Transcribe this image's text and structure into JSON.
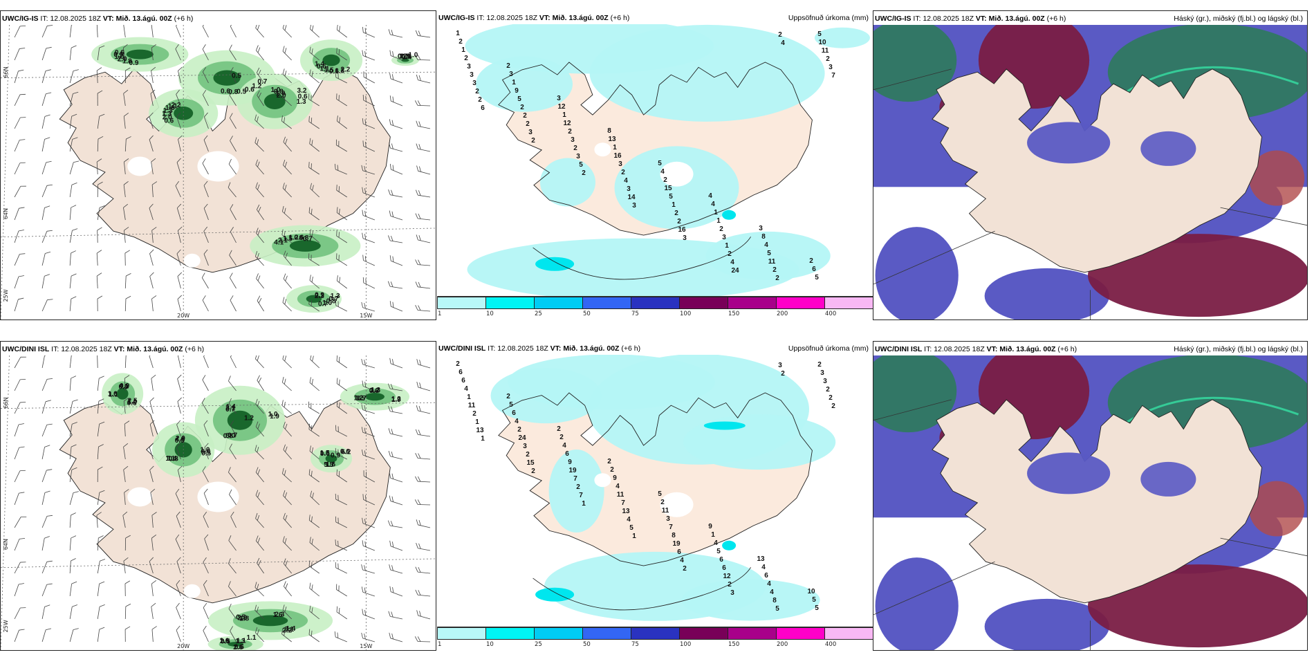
{
  "rows": [
    {
      "model": "UWC/IG-IS",
      "panels": [
        {
          "id": "wind-precip",
          "model": "UWC/IG-IS",
          "it_label": "IT:",
          "it": "12.08.2025 18Z",
          "vt_label": "VT:",
          "vt": "Mið. 13.ágú. 00Z",
          "lead": "(+6 h)",
          "right_title": ""
        },
        {
          "id": "accum-precip",
          "model": "UWC/IG-IS",
          "it_label": "IT:",
          "it": "12.08.2025 18Z",
          "vt_label": "VT:",
          "vt": "Mið. 13.ágú. 00Z",
          "lead": "(+6 h)",
          "right_title": "Uppsöfnuð úrkoma (mm)"
        },
        {
          "id": "clouds",
          "model": "UWC/IG-IS",
          "it_label": "IT:",
          "it": "12.08.2025 18Z",
          "vt_label": "VT:",
          "vt": "Mið. 13.ágú. 00Z",
          "lead": "(+6 h)",
          "right_title": "Háský (gr.), miðský (fj.bl.) og lágský (bl.)"
        }
      ]
    },
    {
      "model": "UWC/DINI ISL",
      "panels": [
        {
          "id": "wind-precip",
          "model": "UWC/DINI ISL",
          "it_label": "IT:",
          "it": "12.08.2025 18Z",
          "vt_label": "VT:",
          "vt": "Mið. 13.ágú. 00Z",
          "lead": "(+6 h)",
          "right_title": ""
        },
        {
          "id": "accum-precip",
          "model": "UWC/DINI ISL",
          "it_label": "IT:",
          "it": "12.08.2025 18Z",
          "vt_label": "VT:",
          "vt": "Mið. 13.ágú. 00Z",
          "lead": "(+6 h)",
          "right_title": "Uppsöfnuð úrkoma (mm)"
        },
        {
          "id": "clouds",
          "model": "UWC/DINI ISL",
          "it_label": "IT:",
          "it": "12.08.2025 18Z",
          "vt_label": "VT:",
          "vt": "Mið. 13.ágú. 00Z",
          "lead": "(+6 h)",
          "right_title": "Háský (gr.), miðský (fj.bl.) og lágský (bl.)"
        }
      ]
    }
  ],
  "axis_labels": {
    "lat_66": "66N",
    "lat_64": "64N",
    "lon_25": "25W",
    "lon_20": "20W",
    "lon_15": "15W"
  },
  "colorbar": {
    "ticks": [
      "1",
      "10",
      "25",
      "50",
      "75",
      "100",
      "150",
      "200",
      "400"
    ],
    "colors": [
      "#b8f8f8",
      "#00f4f4",
      "#00ccf4",
      "#3366f4",
      "#2a32c0",
      "#780058",
      "#a8008a",
      "#ff00c8",
      "#f8b8f4"
    ]
  },
  "colors": {
    "land": "#f2e2d6",
    "land_accum": "#fbeadd",
    "precip_light": "#c8f0c4",
    "precip_mid": "#6cc07a",
    "precip_dark": "#0e5c22",
    "accum_light": "#b4f6f6",
    "accum_mid": "#00e6ee",
    "cloud_low": "#5a5ac4",
    "cloud_mid": "#7a1e44",
    "cloud_high": "#2e7a5c",
    "cloud_high_edge": "#36e0a4"
  },
  "precip_labels": {
    "top": [
      "0.5",
      "0.6",
      "1.0",
      "2.2",
      "4.1",
      "0.9",
      "0.9",
      "0.7",
      "0.7",
      "2.0",
      "0.8",
      "1.3",
      "2.1",
      "2.3",
      "1.8",
      "1.1",
      "1.2",
      "1.3",
      "1.0",
      "0.6",
      "1.5",
      "1.3",
      "2.0",
      "1.8",
      "0.6",
      "1.3",
      "2.0",
      "1.5",
      "1.2",
      "0.7",
      "1.0",
      "0.9",
      "0.5",
      "1.6",
      "3.2",
      "1.1",
      "0.6",
      "0.8",
      "0.9",
      "1.4",
      "0.8",
      "1.1",
      "0.6",
      "0.6",
      "0.8",
      "1.0",
      "0.6",
      "1.0",
      "0.6",
      "2.2",
      "1.3",
      "1.4",
      "0.7",
      "0.7"
    ],
    "bottom": [
      "1.2",
      "1.1",
      "1.3",
      "0.6",
      "0.5",
      "1.1",
      "5.5",
      "1.4",
      "0.5",
      "1.2",
      "0.9",
      "2.2",
      "1.6",
      "0.9",
      "0.8",
      "2.0",
      "1.9",
      "1.6",
      "2.3",
      "2.6",
      "1.5",
      "1.9",
      "1.4",
      "2.2",
      "1.0",
      "2.0",
      "1.3",
      "1.7",
      "2.1",
      "0.6",
      "0.5",
      "4.1",
      "3.1",
      "2.9",
      "6.2",
      "8.0",
      "4.8",
      "1.2",
      "1.1",
      "1.6",
      "0.6",
      "0.6",
      "1.0",
      "0.8",
      "0.6",
      "2.5",
      "1.8",
      "1.1",
      "1.6",
      "0.7",
      "1.0",
      "0.7",
      "0.9",
      "1.4",
      "0.5",
      "0.6",
      "0.7",
      "0.5"
    ]
  },
  "accum_labels": {
    "top": [
      "1",
      "2",
      "3",
      "8",
      "5",
      "4",
      "3",
      "2",
      "2",
      "3",
      "12",
      "13",
      "4",
      "4",
      "8",
      "6",
      "1",
      "1",
      "1",
      "1",
      "2",
      "1",
      "4",
      "5",
      "2",
      "9",
      "12",
      "16",
      "15",
      "1",
      "5",
      "5",
      "3",
      "5",
      "2",
      "3",
      "5",
      "2",
      "11",
      "10",
      "3",
      "2",
      "3",
      "2",
      "1",
      "3",
      "2",
      "11",
      "3",
      "2",
      "2",
      "4",
      "2",
      "1",
      "2",
      "2",
      "2",
      "2",
      "3",
      "3",
      "2",
      "2",
      "2",
      "3",
      "2",
      "3",
      "5",
      "14",
      "16",
      "4",
      "4",
      "7",
      "6",
      "2",
      "2",
      "3",
      "3",
      "24"
    ],
    "bottom": [
      "2",
      "2",
      "2",
      "2",
      "5",
      "9",
      "13",
      "10",
      "6",
      "5",
      "2",
      "2",
      "2",
      "1",
      "4",
      "5",
      "6",
      "6",
      "4",
      "9",
      "11",
      "4",
      "6",
      "5",
      "4",
      "4",
      "6",
      "4",
      "3",
      "5",
      "4",
      "2",
      "1",
      "2",
      "9",
      "11",
      "7",
      "6",
      "4",
      "3",
      "11",
      "24",
      "19",
      "7",
      "8",
      "6",
      "8",
      "3",
      "2",
      "3",
      "7",
      "13",
      "19",
      "12",
      "5",
      "2",
      "1",
      "2",
      "2",
      "4",
      "6",
      "2",
      "3",
      "2",
      "13",
      "15",
      "7",
      "5",
      "4",
      "3",
      "2",
      "2",
      "1",
      "2",
      "1",
      "1",
      "2"
    ]
  }
}
